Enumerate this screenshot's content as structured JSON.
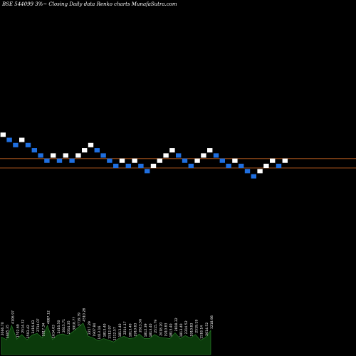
{
  "chart_data": {
    "type": "renko",
    "title": "BSE 544099 3%~  Closing Daily data  Renko  charts MunafaSutra.com",
    "bricks": [
      {
        "y": 2,
        "color": "white"
      },
      {
        "y": 1,
        "color": "blue"
      },
      {
        "y": 0,
        "color": "blue"
      },
      {
        "y": 1,
        "color": "white"
      },
      {
        "y": 0,
        "color": "blue"
      },
      {
        "y": -1,
        "color": "blue"
      },
      {
        "y": -2,
        "color": "blue"
      },
      {
        "y": -3,
        "color": "blue"
      },
      {
        "y": -2,
        "color": "white"
      },
      {
        "y": -3,
        "color": "blue"
      },
      {
        "y": -2,
        "color": "white"
      },
      {
        "y": -3,
        "color": "blue"
      },
      {
        "y": -2,
        "color": "white"
      },
      {
        "y": -1,
        "color": "white"
      },
      {
        "y": 0,
        "color": "white"
      },
      {
        "y": -1,
        "color": "blue"
      },
      {
        "y": -2,
        "color": "blue"
      },
      {
        "y": -3,
        "color": "blue"
      },
      {
        "y": -4,
        "color": "blue"
      },
      {
        "y": -3,
        "color": "white"
      },
      {
        "y": -4,
        "color": "blue"
      },
      {
        "y": -3,
        "color": "white"
      },
      {
        "y": -4,
        "color": "blue"
      },
      {
        "y": -5,
        "color": "blue"
      },
      {
        "y": -4,
        "color": "white"
      },
      {
        "y": -3,
        "color": "white"
      },
      {
        "y": -2,
        "color": "white"
      },
      {
        "y": -1,
        "color": "white"
      },
      {
        "y": -2,
        "color": "blue"
      },
      {
        "y": -3,
        "color": "blue"
      },
      {
        "y": -4,
        "color": "blue"
      },
      {
        "y": -3,
        "color": "white"
      },
      {
        "y": -2,
        "color": "white"
      },
      {
        "y": -1,
        "color": "white"
      },
      {
        "y": -2,
        "color": "blue"
      },
      {
        "y": -3,
        "color": "blue"
      },
      {
        "y": -4,
        "color": "blue"
      },
      {
        "y": -3,
        "color": "white"
      },
      {
        "y": -4,
        "color": "blue"
      },
      {
        "y": -5,
        "color": "blue"
      },
      {
        "y": -6,
        "color": "blue"
      },
      {
        "y": -5,
        "color": "white"
      },
      {
        "y": -4,
        "color": "white"
      },
      {
        "y": -3,
        "color": "white"
      },
      {
        "y": -4,
        "color": "blue"
      },
      {
        "y": -3,
        "color": "white"
      }
    ],
    "reference_lines": [
      {
        "y": -2.6,
        "color": "#c06020"
      },
      {
        "y": -4.4,
        "color": "#c06020"
      }
    ],
    "volume_labels": [
      "2066.70",
      "1605.35",
      "4106.97",
      "1702.69",
      "2514.32",
      "1593.42",
      "2416.63",
      "2714.07",
      "1917.34",
      "4087.12",
      "1614.03",
      "2416.50",
      "2615.71",
      "2314.35",
      "3018.77",
      "3719.39",
      "4510.28",
      "2217.29",
      "1907.84",
      "1413.16",
      "1813.40",
      "1512.97",
      "1212.57",
      "1813.40",
      "2214.17",
      "1813.40",
      "1910.83",
      "2613.56",
      "1812.39",
      "1813.40",
      "2515.79",
      "2018.20",
      "1910.83",
      "1813.40",
      "2818.32",
      "1813.40",
      "2314.52",
      "1910.83",
      "2519.19",
      "1518.14",
      "2014.52",
      "3218.98"
    ]
  },
  "colors": {
    "background": "#000000",
    "up_brick": "#ffffff",
    "down_brick": "#1f6fe0",
    "volume_fill": "#0b3a0b",
    "volume_line": "#2e8b2e",
    "label": "#ffffff",
    "title": "#ffffff"
  }
}
